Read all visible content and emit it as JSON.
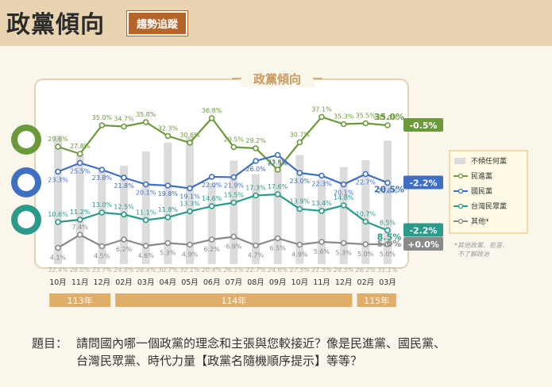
{
  "header": {
    "title": "政黨傾向",
    "tag": "趨勢追蹤"
  },
  "question": {
    "label": "題目：",
    "line1": "請問國內哪一個政黨的理念和主張與您較接近？像是民進黨、國民黨、",
    "line2": "台灣民眾黨、時代力量【政黨名隨機順序提示】等等？"
  },
  "chart_data": {
    "type": "line",
    "title": "政黨傾向",
    "categories": [
      "10月",
      "11月",
      "12月",
      "02月",
      "03月",
      "04月",
      "05月",
      "06月",
      "07月",
      "08月",
      "09月",
      "10月",
      "11月",
      "12月",
      "02月",
      "03月"
    ],
    "year_groups": [
      {
        "label": "113年",
        "from": 0,
        "to": 2
      },
      {
        "label": "114年",
        "from": 3,
        "to": 13
      },
      {
        "label": "115年",
        "from": 14,
        "to": 15
      }
    ],
    "ylim": [
      0,
      40
    ],
    "series": [
      {
        "name": "民進黨",
        "color": "#6a9a3a",
        "values": [
          29.6,
          27.8,
          35.0,
          34.7,
          35.8,
          32.3,
          30.6,
          36.8,
          29.5,
          29.2,
          23.8,
          30.7,
          37.1,
          35.3,
          35.5,
          35.0
        ],
        "change": "-0.5%"
      },
      {
        "name": "國民黨",
        "color": "#3f6fc2",
        "values": [
          23.3,
          25.5,
          23.8,
          21.8,
          20.1,
          19.8,
          19.1,
          22.0,
          21.9,
          26.0,
          27.5,
          23.0,
          22.3,
          20.1,
          22.7,
          20.5
        ],
        "change": "-2.2%"
      },
      {
        "name": "台灣民眾黨",
        "color": "#2a9a8a",
        "values": [
          10.6,
          11.2,
          13.0,
          12.5,
          11.1,
          11.8,
          13.3,
          14.6,
          15.5,
          17.3,
          17.6,
          13.9,
          13.4,
          14.8,
          10.7,
          8.5
        ],
        "change": "-2.2%"
      },
      {
        "name": "其他*",
        "color": "#8a8a8a",
        "values": [
          4.1,
          7.4,
          4.5,
          6.2,
          4.6,
          5.3,
          4.9,
          6.2,
          6.9,
          4.7,
          6.5,
          4.9,
          5.6,
          5.3,
          5.0,
          5.0
        ],
        "change": "+0.0%"
      }
    ],
    "bars": {
      "name": "不傾任何黨",
      "color": "#dcdcdc",
      "values": [
        32.4,
        28.0,
        23.7,
        24.8,
        28.4,
        30.7,
        32.1,
        20.4,
        26.1,
        22.7,
        24.6,
        27.5,
        21.5,
        24.5,
        26.2,
        31.1
      ]
    },
    "legend": [
      "不傾任何黨",
      "民進黨",
      "國民黨",
      "台灣民眾黨",
      "其他*"
    ],
    "footnote_line1": "*其他政黨、拒答、",
    "footnote_line2": "不了解政治"
  }
}
